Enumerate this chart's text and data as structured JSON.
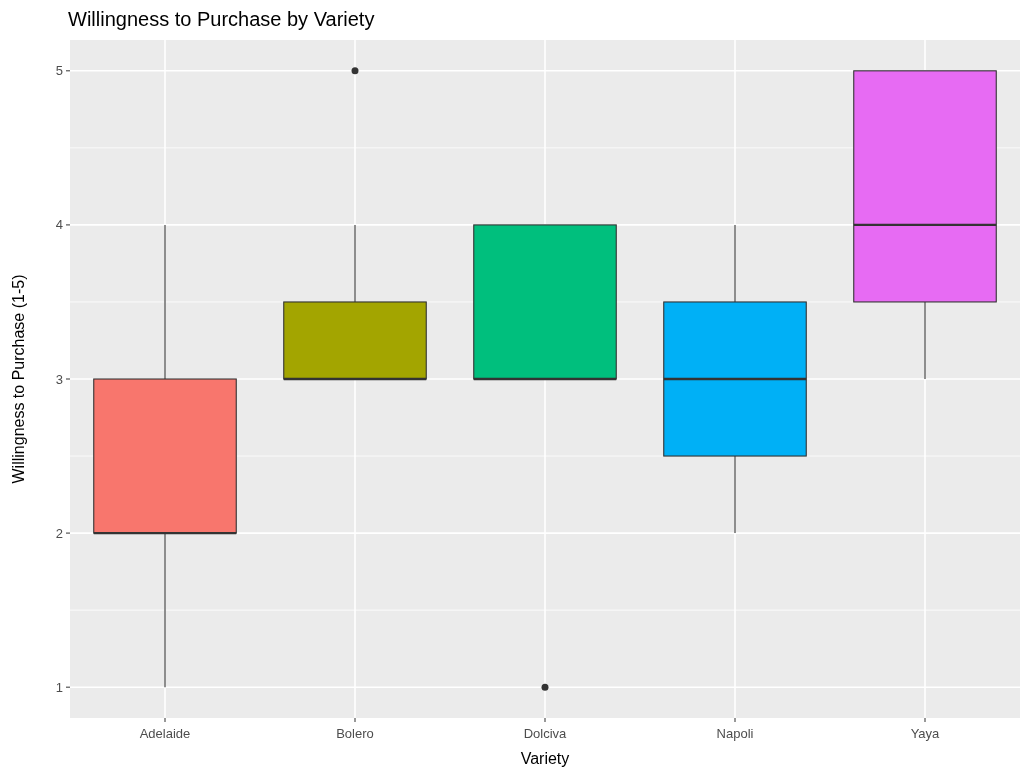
{
  "chart_data": {
    "type": "box",
    "title": "Willingness to Purchase by Variety",
    "xlabel": "Variety",
    "ylabel": "Willingness to Purchase (1-5)",
    "categories": [
      "Adelaide",
      "Bolero",
      "Dolciva",
      "Napoli",
      "Yaya"
    ],
    "colors": [
      "#f8766d",
      "#a3a500",
      "#00bf7d",
      "#00b0f6",
      "#e76bf3"
    ],
    "boxes": [
      {
        "low": 1,
        "q1": 2,
        "median": 2,
        "q3": 3,
        "high": 4
      },
      {
        "low": 3,
        "q1": 3,
        "median": 3,
        "q3": 3.5,
        "high": 4,
        "outliers": [
          5
        ]
      },
      {
        "low": 3,
        "q1": 3,
        "median": 3,
        "q3": 4,
        "high": 4,
        "outliers": [
          1
        ]
      },
      {
        "low": 2,
        "q1": 2.5,
        "median": 3,
        "q3": 3.5,
        "high": 4
      },
      {
        "low": 3,
        "q1": 3.5,
        "median": 4,
        "q3": 5,
        "high": 5
      }
    ],
    "ylim": [
      0.8,
      5.2
    ],
    "yticks": [
      1,
      {
        "value": 1.5,
        "label": null
      },
      2,
      {
        "value": 2.5,
        "label": null
      },
      3,
      {
        "value": 3.5,
        "label": null
      },
      4,
      {
        "value": 4.5,
        "label": null
      },
      5
    ],
    "grid": true
  }
}
